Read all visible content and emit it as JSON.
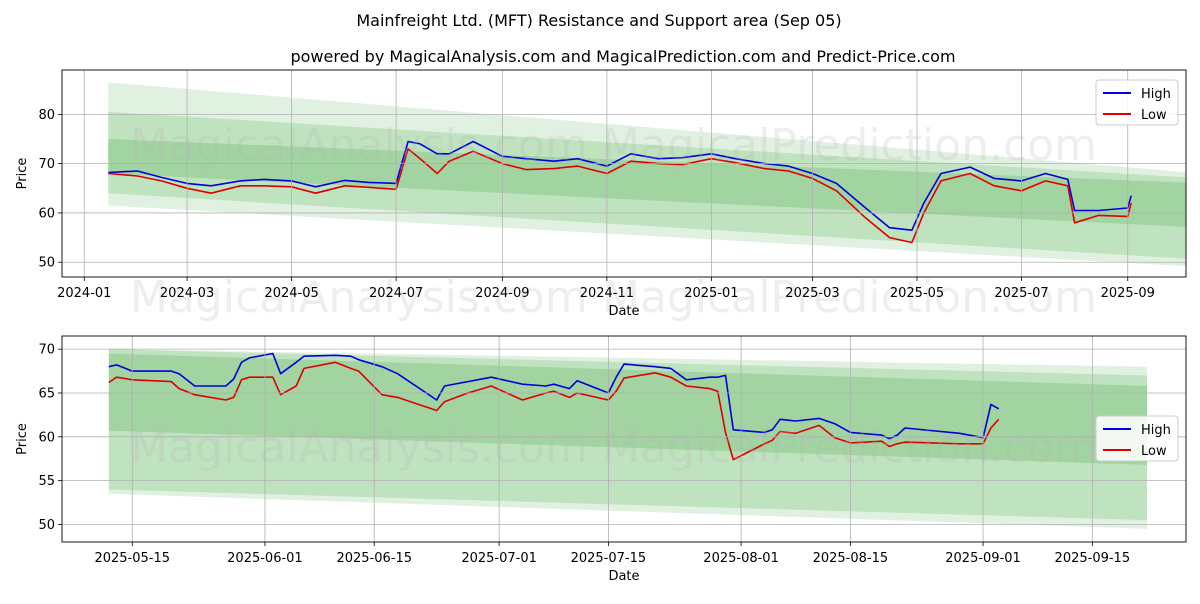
{
  "colors": {
    "high": "#0000dd",
    "low": "#dd0000",
    "band_light": "#c8e6c8",
    "band_mid": "#a8d8a8",
    "band_dark": "#88c888",
    "grid": "#b0b0b0"
  },
  "titles": {
    "main": "Mainfreight Ltd. (MFT) Resistance and Support area (Sep 05)",
    "sub": "powered by MagicalAnalysis.com and MagicalPrediction.com and Predict-Price.com"
  },
  "watermarks": [
    "MagicalAnalysis.com",
    "MagicalPrediction.com"
  ],
  "chart_data": [
    {
      "type": "line",
      "xlabel": "Date",
      "ylabel": "Price",
      "ylim": [
        47,
        89
      ],
      "y_ticks": [
        50,
        60,
        70,
        80
      ],
      "x_ticks": [
        "2024-01",
        "2024-03",
        "2024-05",
        "2024-07",
        "2024-09",
        "2024-11",
        "2025-01",
        "2025-03",
        "2025-05",
        "2025-07",
        "2025-09"
      ],
      "legend": [
        "High",
        "Low"
      ],
      "legend_position": "top-right",
      "grid": true,
      "bands": {
        "x_start": "2024-01-15",
        "x_end": "2025-10-15",
        "outer_top": [
          86.5,
          68
        ],
        "outer_bottom": [
          61.5,
          49
        ],
        "mid_top": [
          80.5,
          67
        ],
        "mid_bottom": [
          64,
          50.5
        ],
        "inner_top": [
          75,
          66
        ],
        "inner_bottom": [
          68,
          57
        ]
      },
      "series": [
        {
          "name": "High",
          "x": [
            "2024-01-15",
            "2024-02-01",
            "2024-02-15",
            "2024-03-01",
            "2024-03-15",
            "2024-04-01",
            "2024-04-15",
            "2024-05-01",
            "2024-05-15",
            "2024-06-01",
            "2024-06-15",
            "2024-07-01",
            "2024-07-08",
            "2024-07-15",
            "2024-07-25",
            "2024-08-01",
            "2024-08-15",
            "2024-09-01",
            "2024-09-15",
            "2024-10-01",
            "2024-10-15",
            "2024-11-01",
            "2024-11-15",
            "2024-12-01",
            "2024-12-15",
            "2025-01-01",
            "2025-01-15",
            "2025-02-01",
            "2025-02-15",
            "2025-03-01",
            "2025-03-15",
            "2025-04-01",
            "2025-04-15",
            "2025-04-28",
            "2025-05-05",
            "2025-05-15",
            "2025-06-01",
            "2025-06-15",
            "2025-07-01",
            "2025-07-15",
            "2025-07-28",
            "2025-08-01",
            "2025-08-15",
            "2025-09-01",
            "2025-09-03"
          ],
          "values": [
            68.2,
            68.5,
            67.2,
            66,
            65.5,
            66.5,
            66.8,
            66.5,
            65.3,
            66.6,
            66.2,
            66,
            74.5,
            74,
            72,
            72,
            74.5,
            71.5,
            71,
            70.5,
            71,
            69.5,
            72,
            71,
            71.2,
            72,
            71,
            70,
            69.5,
            68,
            66,
            61,
            57,
            56.5,
            62,
            68,
            69.3,
            67,
            66.5,
            68,
            66.8,
            60.5,
            60.5,
            61,
            63.5
          ]
        },
        {
          "name": "Low",
          "x": [
            "2024-01-15",
            "2024-02-01",
            "2024-02-15",
            "2024-03-01",
            "2024-03-15",
            "2024-04-01",
            "2024-04-15",
            "2024-05-01",
            "2024-05-15",
            "2024-06-01",
            "2024-06-15",
            "2024-07-01",
            "2024-07-08",
            "2024-07-15",
            "2024-07-25",
            "2024-08-01",
            "2024-08-15",
            "2024-09-01",
            "2024-09-15",
            "2024-10-01",
            "2024-10-15",
            "2024-11-01",
            "2024-11-15",
            "2024-12-01",
            "2024-12-15",
            "2025-01-01",
            "2025-01-15",
            "2025-02-01",
            "2025-02-15",
            "2025-03-01",
            "2025-03-15",
            "2025-04-01",
            "2025-04-15",
            "2025-04-28",
            "2025-05-05",
            "2025-05-15",
            "2025-06-01",
            "2025-06-15",
            "2025-07-01",
            "2025-07-15",
            "2025-07-28",
            "2025-08-01",
            "2025-08-15",
            "2025-09-01",
            "2025-09-03"
          ],
          "values": [
            68,
            67.5,
            66.5,
            65,
            64,
            65.5,
            65.5,
            65.3,
            64,
            65.5,
            65.2,
            64.8,
            73,
            71,
            68,
            70.5,
            72.5,
            70,
            68.8,
            69,
            69.5,
            68,
            70.5,
            70,
            69.8,
            71,
            70.2,
            69,
            68.5,
            67,
            64.5,
            59,
            55,
            54,
            60,
            66.5,
            68,
            65.5,
            64.5,
            66.5,
            65.5,
            58,
            59.5,
            59.3,
            62
          ]
        }
      ]
    },
    {
      "type": "line",
      "xlabel": "Date",
      "ylabel": "Price",
      "ylim": [
        48,
        71.5
      ],
      "y_ticks": [
        50,
        55,
        60,
        65,
        70
      ],
      "x_ticks": [
        "2025-05-15",
        "2025-06-01",
        "2025-06-15",
        "2025-07-01",
        "2025-07-15",
        "2025-08-01",
        "2025-08-15",
        "2025-09-01",
        "2025-09-15"
      ],
      "legend": [
        "High",
        "Low"
      ],
      "legend_position": "center-right",
      "grid": true,
      "bands": {
        "x_start": "2025-05-12",
        "x_end": "2025-09-22",
        "outer_top": [
          70,
          68
        ],
        "outer_bottom": [
          53.5,
          49.5
        ],
        "mid_top": [
          70,
          67
        ],
        "mid_bottom": [
          54,
          50.5
        ],
        "inner_top": [
          69.5,
          65.8
        ],
        "inner_bottom": [
          60.7,
          56.8
        ]
      },
      "series": [
        {
          "name": "High",
          "x": [
            "2025-05-12",
            "2025-05-13",
            "2025-05-15",
            "2025-05-20",
            "2025-05-21",
            "2025-05-23",
            "2025-05-27",
            "2025-05-28",
            "2025-05-29",
            "2025-05-30",
            "2025-06-02",
            "2025-06-03",
            "2025-06-05",
            "2025-06-06",
            "2025-06-10",
            "2025-06-12",
            "2025-06-13",
            "2025-06-16",
            "2025-06-18",
            "2025-06-23",
            "2025-06-24",
            "2025-06-27",
            "2025-06-30",
            "2025-07-04",
            "2025-07-07",
            "2025-07-08",
            "2025-07-10",
            "2025-07-11",
            "2025-07-15",
            "2025-07-16",
            "2025-07-17",
            "2025-07-21",
            "2025-07-23",
            "2025-07-25",
            "2025-07-28",
            "2025-07-29",
            "2025-07-30",
            "2025-07-31",
            "2025-08-04",
            "2025-08-05",
            "2025-08-06",
            "2025-08-08",
            "2025-08-11",
            "2025-08-13",
            "2025-08-15",
            "2025-08-19",
            "2025-08-20",
            "2025-08-21",
            "2025-08-22",
            "2025-08-29",
            "2025-09-01",
            "2025-09-02",
            "2025-09-03"
          ],
          "values": [
            68,
            68.2,
            67.5,
            67.5,
            67.2,
            65.8,
            65.8,
            66.6,
            68.5,
            69,
            69.5,
            67.2,
            68.5,
            69.2,
            69.3,
            69.2,
            68.8,
            68,
            67.2,
            64.2,
            65.8,
            66.3,
            66.8,
            66,
            65.8,
            66,
            65.5,
            66.4,
            65,
            66.8,
            68.3,
            68,
            67.8,
            66.5,
            66.8,
            66.8,
            67,
            60.8,
            60.5,
            60.8,
            62,
            61.8,
            62.1,
            61.5,
            60.5,
            60.2,
            59.8,
            60.2,
            61,
            60.4,
            59.9,
            63.7,
            63.2
          ]
        },
        {
          "name": "Low",
          "x": [
            "2025-05-12",
            "2025-05-13",
            "2025-05-15",
            "2025-05-20",
            "2025-05-21",
            "2025-05-23",
            "2025-05-27",
            "2025-05-28",
            "2025-05-29",
            "2025-05-30",
            "2025-06-02",
            "2025-06-03",
            "2025-06-05",
            "2025-06-06",
            "2025-06-10",
            "2025-06-12",
            "2025-06-13",
            "2025-06-16",
            "2025-06-18",
            "2025-06-23",
            "2025-06-24",
            "2025-06-27",
            "2025-06-30",
            "2025-07-04",
            "2025-07-07",
            "2025-07-08",
            "2025-07-10",
            "2025-07-11",
            "2025-07-15",
            "2025-07-16",
            "2025-07-17",
            "2025-07-21",
            "2025-07-23",
            "2025-07-25",
            "2025-07-28",
            "2025-07-29",
            "2025-07-30",
            "2025-07-31",
            "2025-08-04",
            "2025-08-05",
            "2025-08-06",
            "2025-08-08",
            "2025-08-11",
            "2025-08-13",
            "2025-08-15",
            "2025-08-19",
            "2025-08-20",
            "2025-08-21",
            "2025-08-22",
            "2025-08-29",
            "2025-09-01",
            "2025-09-02",
            "2025-09-03"
          ],
          "values": [
            66.2,
            66.8,
            66.5,
            66.3,
            65.5,
            64.8,
            64.2,
            64.5,
            66.5,
            66.8,
            66.8,
            64.8,
            65.8,
            67.8,
            68.5,
            67.8,
            67.5,
            64.8,
            64.5,
            63,
            64,
            65,
            65.8,
            64.2,
            65,
            65.2,
            64.5,
            65,
            64.2,
            65.2,
            66.7,
            67.3,
            66.8,
            65.8,
            65.5,
            65.2,
            60.5,
            57.4,
            59.2,
            59.6,
            60.6,
            60.4,
            61.3,
            59.9,
            59.3,
            59.5,
            58.9,
            59.2,
            59.4,
            59.2,
            59.2,
            61,
            62
          ]
        }
      ]
    }
  ]
}
